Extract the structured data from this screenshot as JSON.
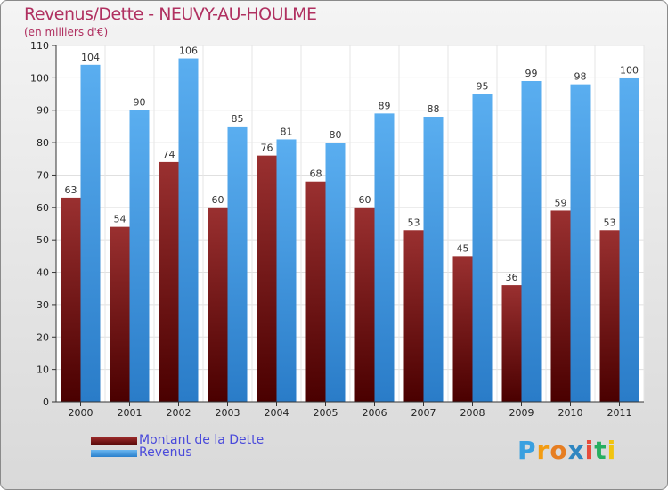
{
  "chart_data": {
    "type": "bar",
    "title": "Revenus/Dette - NEUVY-AU-HOULME",
    "subtitle": "(en milliers d'€)",
    "categories": [
      "2000",
      "2001",
      "2002",
      "2003",
      "2004",
      "2005",
      "2006",
      "2007",
      "2008",
      "2009",
      "2010",
      "2011"
    ],
    "series": [
      {
        "name": "Montant de la Dette",
        "color": "#7a1a1a",
        "values": [
          63,
          54,
          74,
          60,
          76,
          68,
          60,
          53,
          45,
          36,
          59,
          53
        ]
      },
      {
        "name": "Revenus",
        "color": "#4aa0e6",
        "values": [
          104,
          90,
          106,
          85,
          81,
          80,
          89,
          88,
          95,
          99,
          98,
          100
        ]
      }
    ],
    "ylim": [
      0,
      110
    ],
    "yticks": [
      0,
      10,
      20,
      30,
      40,
      50,
      60,
      70,
      80,
      90,
      100,
      110
    ],
    "grid": true,
    "legend": "bottom-left"
  },
  "branding": {
    "logo_letters": [
      "P",
      "r",
      "o",
      "x",
      "i",
      "t",
      "i"
    ],
    "logo_colors": [
      "#3aa0e0",
      "#f39c12",
      "#e67e22",
      "#2e86c1",
      "#e74c3c",
      "#27ae60",
      "#f1c40f"
    ]
  }
}
